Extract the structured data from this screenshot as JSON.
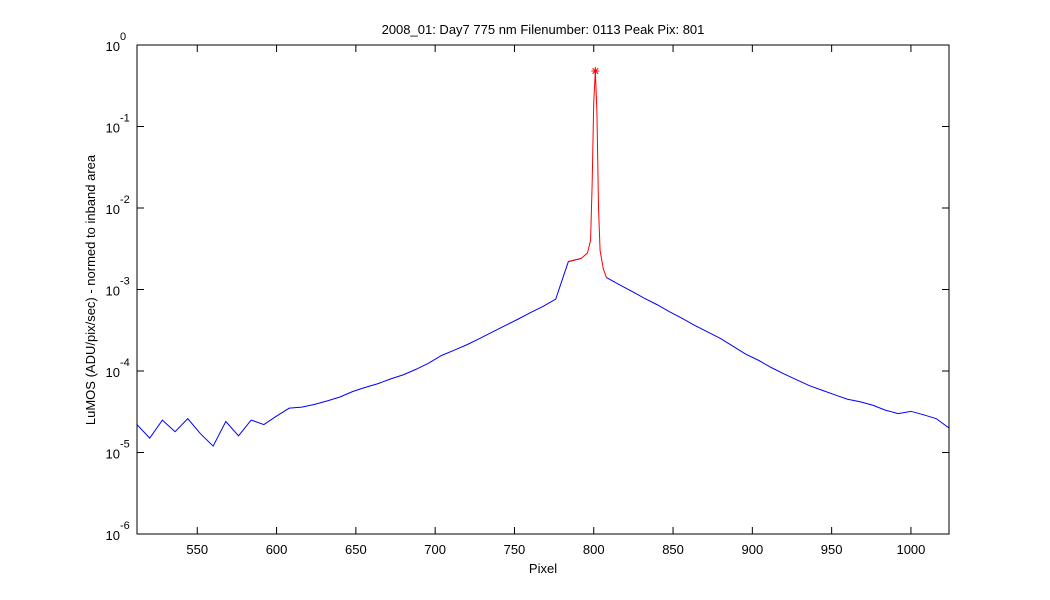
{
  "chart_data": {
    "type": "line",
    "title": "2008_01: Day7  775 nm  Filenumber: 0113 Peak Pix: 801",
    "x_label": "Pixel",
    "y_label": "LuMOS (ADU/pix/sec) - normed to inband area",
    "xlim": [
      512,
      1024
    ],
    "xticks": [
      550,
      600,
      650,
      700,
      750,
      800,
      850,
      900,
      950,
      1000
    ],
    "ylim": [
      1e-06,
      1
    ],
    "y_scale": "log",
    "yticks": [
      {
        "value": 1,
        "label": "10",
        "exponent": "0"
      },
      {
        "value": 0.1,
        "label": "10",
        "exponent": "-1"
      },
      {
        "value": 0.01,
        "label": "10",
        "exponent": "-2"
      },
      {
        "value": 0.001,
        "label": "10",
        "exponent": "-3"
      },
      {
        "value": 0.0001,
        "label": "10",
        "exponent": "-4"
      },
      {
        "value": 1e-05,
        "label": "10",
        "exponent": "-5"
      },
      {
        "value": 1e-06,
        "label": "10",
        "exponent": "-6"
      }
    ],
    "grid": false,
    "series": [
      {
        "color": "#0000ff",
        "x": [
          512,
          520,
          528,
          536,
          544,
          552,
          560,
          568,
          576,
          584,
          592,
          600,
          608,
          616,
          624,
          632,
          640,
          648,
          656,
          664,
          672,
          680,
          688,
          696,
          704,
          712,
          720,
          728,
          736,
          744,
          752,
          760,
          768,
          776,
          784,
          792,
          800,
          808,
          816,
          824,
          832,
          840,
          848,
          856,
          864,
          872,
          880,
          888,
          896,
          904,
          912,
          920,
          928,
          936,
          944,
          952,
          960,
          968,
          976,
          984,
          992,
          1000,
          1008,
          1016,
          1024
        ],
        "values": [
          2.2e-05,
          1.5e-05,
          2.5e-05,
          1.8e-05,
          2.6e-05,
          1.7e-05,
          1.2e-05,
          2.4e-05,
          1.6e-05,
          2.5e-05,
          2.2e-05,
          2.8e-05,
          3.5e-05,
          3.6e-05,
          3.9e-05,
          4.3e-05,
          4.8e-05,
          5.6e-05,
          6.3e-05,
          7e-05,
          8e-05,
          9e-05,
          0.000105,
          0.000125,
          0.000155,
          0.00018,
          0.00021,
          0.00025,
          0.0003,
          0.00036,
          0.00043,
          0.00052,
          0.00062,
          0.00076,
          0.0022,
          0.0024,
          null,
          0.0014,
          0.00115,
          0.00095,
          0.00078,
          0.00065,
          0.00053,
          0.00044,
          0.00036,
          0.0003,
          0.00025,
          0.0002,
          0.00016,
          0.000135,
          0.00011,
          9.2e-05,
          7.8e-05,
          6.6e-05,
          5.8e-05,
          5.1e-05,
          4.5e-05,
          4.2e-05,
          3.8e-05,
          3.3e-05,
          3e-05,
          3.2e-05,
          2.9e-05,
          2.6e-05,
          2e-05
        ]
      },
      {
        "color": "#ff0000",
        "x": [
          784,
          788,
          792,
          796,
          798,
          799,
          800,
          801,
          802,
          803,
          804,
          806,
          808
        ],
        "values": [
          0.0022,
          0.0023,
          0.0024,
          0.0028,
          0.004,
          0.02,
          0.2,
          0.48,
          0.15,
          0.01,
          0.003,
          0.0018,
          0.0014
        ]
      }
    ],
    "peak": {
      "x": 801,
      "y": 0.48,
      "color": "#ff0000",
      "marker": "*"
    }
  }
}
